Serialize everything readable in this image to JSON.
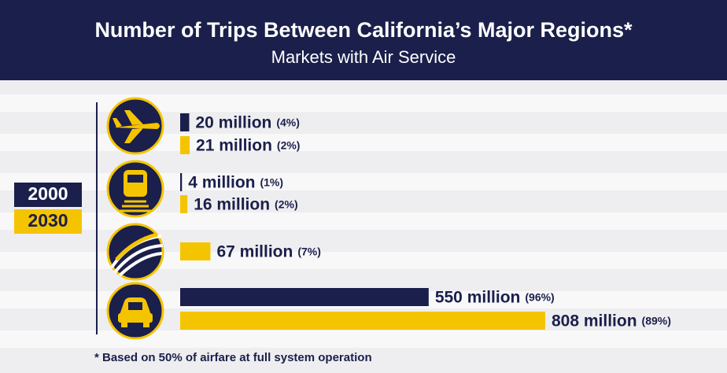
{
  "chart_data": {
    "type": "bar",
    "orientation": "horizontal",
    "title": "Number of Trips Between California’s Major Regions*",
    "subtitle": "Markets with Air Service",
    "categories": [
      null,
      null,
      null,
      null
    ],
    "series": [
      {
        "name": "2000",
        "color": "#1a1f4b",
        "values": [
          20,
          4,
          null,
          550
        ],
        "value_labels": [
          "20 million",
          "4 million",
          null,
          "550 million"
        ],
        "shares": [
          4,
          1,
          null,
          96
        ],
        "share_labels": [
          "(4%)",
          "(1%)",
          null,
          "(96%)"
        ]
      },
      {
        "name": "2030",
        "color": "#f5c400",
        "values": [
          21,
          16,
          67,
          808
        ],
        "value_labels": [
          "21 million",
          "16 million",
          "67 million",
          "808 million"
        ],
        "shares": [
          2,
          2,
          7,
          89
        ],
        "share_labels": [
          "(2%)",
          "(2%)",
          "(7%)",
          "(89%)"
        ]
      }
    ],
    "footnote": "* Based on 50% of airfare at full system operation"
  }
}
